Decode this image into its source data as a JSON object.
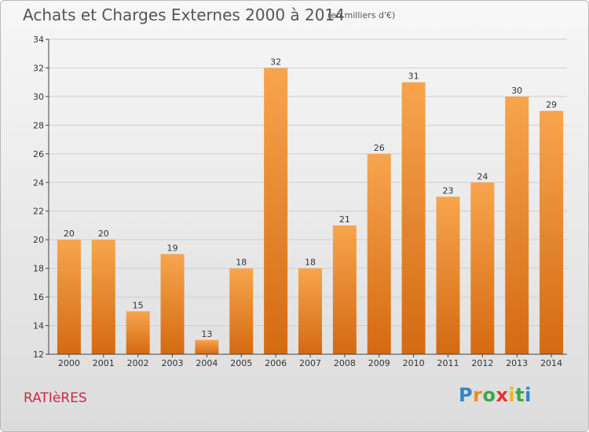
{
  "header": {
    "title": "Achats et Charges Externes 2000 à 2014",
    "unit": "(en milliers d'€)"
  },
  "footer": {
    "commune": "RATIèRES",
    "logo_letters": [
      "P",
      "r",
      "o",
      "x",
      "i",
      "t",
      "i"
    ],
    "logo_colors": [
      "#2f86c8",
      "#f08a1e",
      "#3aa74a",
      "#e8302e",
      "#f0b41e",
      "#3aa74a",
      "#2f86c8"
    ]
  },
  "colors": {
    "bar_light": "#f7a54e",
    "bar_dark": "#d46a12",
    "grid": "#d0d0d0",
    "axis": "#444444"
  },
  "chart_data": {
    "type": "bar",
    "categories": [
      "2000",
      "2001",
      "2002",
      "2003",
      "2004",
      "2005",
      "2006",
      "2007",
      "2008",
      "2009",
      "2010",
      "2011",
      "2012",
      "2013",
      "2014"
    ],
    "values": [
      20,
      20,
      15,
      19,
      13,
      18,
      32,
      18,
      21,
      26,
      31,
      23,
      24,
      30,
      29
    ],
    "title": "Achats et Charges Externes 2000 à 2014",
    "xlabel": "",
    "ylabel": "",
    "ylim": [
      12,
      34
    ],
    "yticks": [
      12,
      14,
      16,
      18,
      20,
      22,
      24,
      26,
      28,
      30,
      32,
      34
    ],
    "grid": true,
    "data_labels": true
  }
}
